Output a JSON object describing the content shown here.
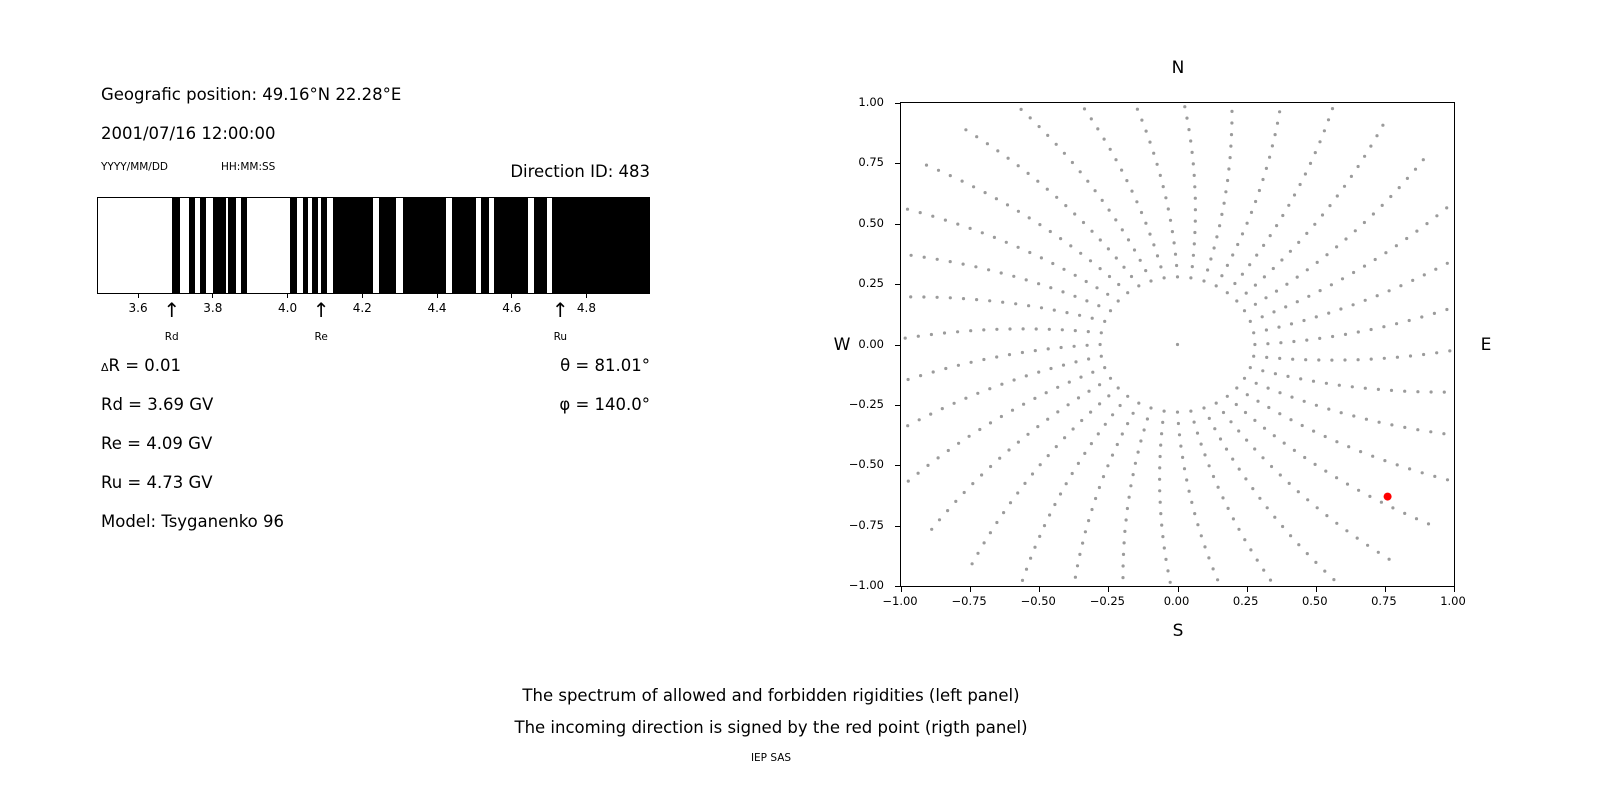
{
  "left_panel": {
    "geo_position": "Geografic position: 49.16°N 22.28°E",
    "datetime": "2001/07/16 12:00:00",
    "date_format": "YYYY/MM/DD",
    "time_format": "HH:MM:SS",
    "direction_id": "Direction ID: 483",
    "delta_symbol": "Δ",
    "delta_rest": "R = 0.01",
    "theta": "θ = 81.01°",
    "rd": "Rd = 3.69 GV",
    "phi": "φ = 140.0°",
    "re": "Re = 4.09 GV",
    "ru": "Ru = 4.73 GV",
    "model": "Model: Tsyganenko 96"
  },
  "right_panel": {
    "north": "N",
    "south": "S",
    "east": "E",
    "west": "W"
  },
  "caption": {
    "line1": "The spectrum of allowed and forbidden rigidities (left panel)",
    "line2": "The incoming direction is signed by the red point (rigth panel)",
    "credit": "IEP SAS"
  },
  "chart_data": [
    {
      "type": "bar",
      "panel": "left",
      "description": "Barcode spectrum of allowed (white) and forbidden (black) rigidities",
      "x_unit": "GV",
      "xlim": [
        3.49,
        4.97
      ],
      "xtick_values": [
        3.6,
        3.8,
        4.0,
        4.2,
        4.4,
        4.6,
        4.8
      ],
      "xtick_labels": [
        "3.6",
        "3.8",
        "4.0",
        "4.2",
        "4.4",
        "4.6",
        "4.8"
      ],
      "black_intervals": [
        [
          3.69,
          3.71
        ],
        [
          3.735,
          3.75
        ],
        [
          3.765,
          3.78
        ],
        [
          3.8,
          3.835
        ],
        [
          3.84,
          3.86
        ],
        [
          3.875,
          3.89
        ],
        [
          4.005,
          4.025
        ],
        [
          4.04,
          4.055
        ],
        [
          4.065,
          4.08
        ],
        [
          4.09,
          4.105
        ],
        [
          4.12,
          4.23
        ],
        [
          4.245,
          4.29
        ],
        [
          4.31,
          4.425
        ],
        [
          4.44,
          4.505
        ],
        [
          4.52,
          4.54
        ],
        [
          4.555,
          4.645
        ],
        [
          4.66,
          4.695
        ],
        [
          4.71,
          4.97
        ]
      ],
      "markers": [
        {
          "label": "Rd",
          "value": 3.69
        },
        {
          "label": "Re",
          "value": 4.09
        },
        {
          "label": "Ru",
          "value": 4.73
        }
      ],
      "arrow_glyph": "↑",
      "cutoff_values_GV": {
        "delta_R": 0.01,
        "Rd": 3.69,
        "Re": 4.09,
        "Ru": 4.73
      }
    },
    {
      "type": "scatter",
      "panel": "right",
      "description": "Asymptotic directions map; incoming direction marked by red point",
      "compass_labels": {
        "top": "N",
        "bottom": "S",
        "left": "W",
        "right": "E"
      },
      "xlim": [
        -1,
        1
      ],
      "ylim": [
        -1,
        1
      ],
      "xtick_values": [
        -1,
        -0.75,
        -0.5,
        -0.25,
        0,
        0.25,
        0.5,
        0.75,
        1
      ],
      "xtick_labels": [
        "−1.00",
        "−0.75",
        "−0.50",
        "−0.25",
        "0.00",
        "0.25",
        "0.50",
        "0.75",
        "1.00"
      ],
      "ytick_values": [
        -1,
        -0.75,
        -0.5,
        -0.25,
        0,
        0.25,
        0.5,
        0.75,
        1
      ],
      "ytick_labels": [
        "−1.00",
        "−0.75",
        "−0.50",
        "−0.25",
        "0.00",
        "0.25",
        "0.50",
        "0.75",
        "1.00"
      ],
      "dot_color": "#9b9b9b",
      "red_color": "#ff0000",
      "spokes": {
        "count": 36,
        "r_start": 0.28,
        "r_step": 0.047,
        "points_per_spoke": 20,
        "curvature_deg": 12
      },
      "center_dot": [
        0.0,
        0.0
      ],
      "red_point": [
        0.76,
        -0.63
      ],
      "incoming_direction": {
        "theta_deg": 81.01,
        "phi_deg": 140.0
      }
    }
  ]
}
